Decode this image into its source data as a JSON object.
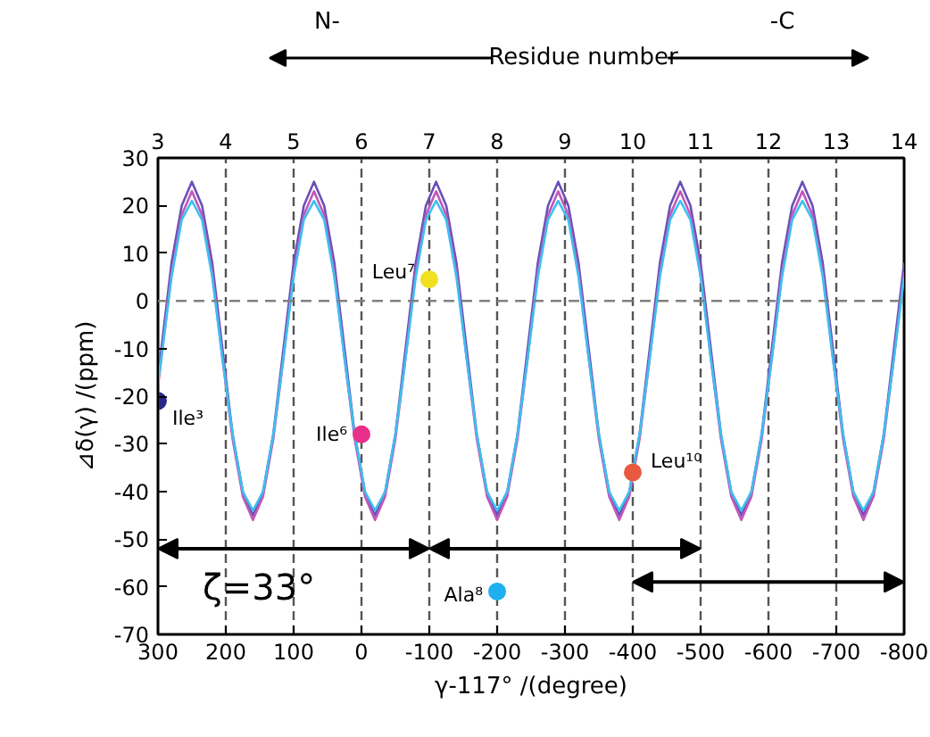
{
  "chart_data": {
    "type": "line",
    "xlabel": "γ-117° /(degree)",
    "ylabel": "⊿δ(γ) /(ppm)",
    "x2label": "Residue number",
    "xlim": [
      300,
      -800
    ],
    "xticks": [
      300,
      200,
      100,
      0,
      {
        "value": -100,
        "label": "-100"
      },
      {
        "value": -200,
        "label": "-200"
      },
      {
        "value": -300,
        "label": "-300"
      },
      {
        "value": -400,
        "label": "-400"
      },
      {
        "value": -500,
        "label": "-500"
      },
      {
        "value": -600,
        "label": "-600"
      },
      {
        "value": -700,
        "label": "-700"
      },
      {
        "value": -800,
        "label": "-800"
      }
    ],
    "ylim": [
      -70,
      30
    ],
    "yticks": [
      {
        "value": -70,
        "label": "-70"
      },
      {
        "value": -60,
        "label": "-60"
      },
      {
        "value": -50,
        "label": "-50"
      },
      {
        "value": -40,
        "label": "-40"
      },
      {
        "value": -30,
        "label": "-30"
      },
      {
        "value": -20,
        "label": "-20"
      },
      {
        "value": -10,
        "label": "-10"
      },
      0,
      10,
      20,
      30
    ],
    "x2lim": [
      3,
      14
    ],
    "x2ticks": [
      3,
      4,
      5,
      6,
      7,
      8,
      9,
      10,
      11,
      12,
      13,
      14
    ],
    "grid": "x",
    "line_style": "solid",
    "x": [
      300,
      295,
      280,
      265,
      250,
      235,
      220,
      205,
      190,
      175,
      160,
      145,
      130,
      115,
      100,
      85,
      70,
      55,
      40,
      25,
      10,
      -5,
      -20,
      -35,
      -50,
      -65,
      -80,
      -95,
      -110,
      -125,
      -140,
      -155,
      -170,
      -185,
      -200,
      -215,
      -230,
      -245,
      -260,
      -275,
      -290,
      -305,
      -320,
      -335,
      -350,
      -365,
      -380,
      -395,
      -410,
      -425,
      -440,
      -455,
      -470,
      -485,
      -500,
      -515,
      -530,
      -545,
      -560,
      -575,
      -590,
      -605,
      -620,
      -635,
      -650,
      -665,
      -680,
      -695,
      -710,
      -725,
      -740,
      -755,
      -770,
      -785,
      -800
    ],
    "series": [
      {
        "color": "#6a4fb8",
        "values": [
          -16,
          -10,
          8,
          20,
          25,
          20,
          8,
          -10,
          -28,
          -40,
          -45,
          -40,
          -28,
          -10,
          8,
          20,
          25,
          20,
          8,
          -10,
          -28,
          -40,
          -45,
          -40,
          -28,
          -10,
          8,
          20,
          25,
          20,
          8,
          -10,
          -28,
          -40,
          -45,
          -40,
          -28,
          -10,
          8,
          20,
          25,
          20,
          8,
          -10,
          -28,
          -40,
          -45,
          -40,
          -28,
          -10,
          8,
          20,
          25,
          20,
          8,
          -10,
          -28,
          -40,
          -45,
          -40,
          -28,
          -10,
          8,
          20,
          25,
          20,
          8,
          -10,
          -28,
          -40,
          -45,
          -40,
          -28,
          -10,
          8
        ]
      },
      {
        "color": "#c058b8",
        "values": [
          -18,
          -12,
          6,
          18,
          23,
          18,
          6,
          -12,
          -29,
          -41,
          -46,
          -41,
          -29,
          -12,
          6,
          18,
          23,
          18,
          6,
          -12,
          -29,
          -41,
          -46,
          -41,
          -29,
          -12,
          6,
          18,
          23,
          18,
          6,
          -12,
          -29,
          -41,
          -46,
          -41,
          -29,
          -12,
          6,
          18,
          23,
          18,
          6,
          -12,
          -29,
          -41,
          -46,
          -41,
          -29,
          -12,
          6,
          18,
          23,
          18,
          6,
          -12,
          -29,
          -41,
          -46,
          -41,
          -29,
          -12,
          6,
          18,
          23,
          18,
          6,
          -12,
          -29,
          -41,
          -46,
          -41,
          -29,
          -12,
          6
        ]
      },
      {
        "color": "#3cc0f0",
        "values": [
          -17,
          -12,
          5,
          17,
          21,
          17,
          5,
          -12,
          -28,
          -40,
          -44,
          -40,
          -28,
          -12,
          5,
          17,
          21,
          17,
          5,
          -12,
          -28,
          -40,
          -44,
          -40,
          -28,
          -12,
          5,
          17,
          21,
          17,
          5,
          -12,
          -28,
          -40,
          -44,
          -40,
          -28,
          -12,
          5,
          17,
          21,
          17,
          5,
          -12,
          -28,
          -40,
          -44,
          -40,
          -28,
          -12,
          5,
          17,
          21,
          17,
          5,
          -12,
          -28,
          -40,
          -44,
          -40,
          -28,
          -12,
          5,
          17,
          21,
          17,
          5,
          -12,
          -28,
          -40,
          -44,
          -40,
          -28,
          -12,
          5
        ]
      },
      {
        "type": "scatter",
        "marker": "circle",
        "color": "#28288c",
        "x": [
          300
        ],
        "values": [
          -21
        ]
      },
      {
        "type": "scatter",
        "marker": "circle",
        "color": "#e8308a",
        "x": [
          0
        ],
        "values": [
          -28
        ]
      },
      {
        "type": "scatter",
        "marker": "circle",
        "color": "#f0e020",
        "x": [
          -100
        ],
        "values": [
          4.5
        ]
      },
      {
        "type": "scatter",
        "marker": "circle",
        "color": "#20b0f0",
        "x": [
          -200
        ],
        "values": [
          -61
        ]
      },
      {
        "type": "scatter",
        "marker": "circle",
        "color": "#e85a40",
        "x": [
          -400
        ],
        "values": [
          -36
        ]
      }
    ],
    "ref_lines": [
      {
        "axis": "y",
        "value": 0,
        "color": "#808080",
        "line_style": "dashed"
      }
    ],
    "annotations": [
      "N-",
      "-C",
      "ζ=33°",
      {
        "text": "Ile³",
        "x": 300,
        "y": -21
      },
      {
        "text": "Ile⁶",
        "x": 0,
        "y": -28
      },
      {
        "text": "Leu⁷",
        "x": -100,
        "y": 4.5
      },
      {
        "text": "Ala⁸",
        "x": -200,
        "y": -61
      },
      {
        "text": "Leu¹⁰",
        "x": -400,
        "y": -36
      }
    ]
  }
}
